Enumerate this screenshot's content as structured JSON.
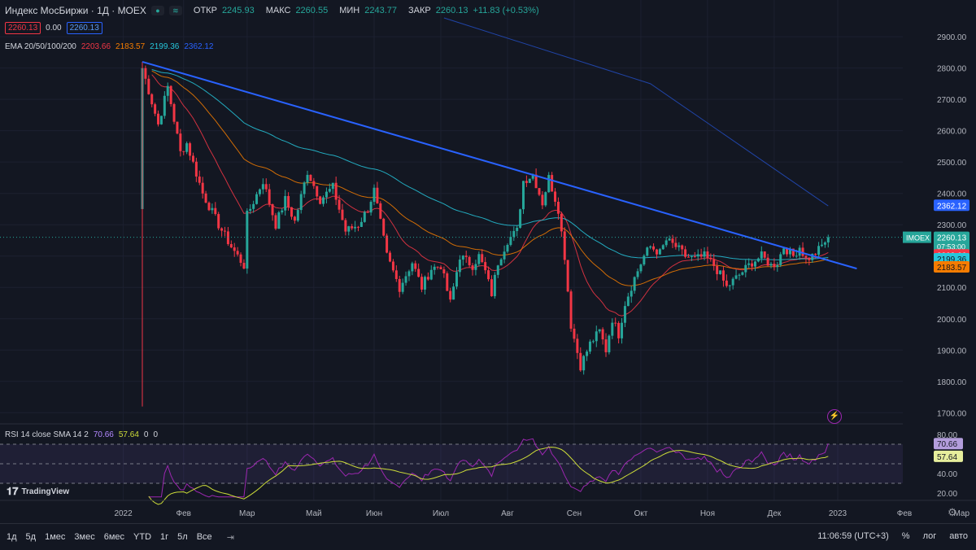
{
  "header": {
    "symbol": "Индекс МосБиржи · 1Д · MOEX",
    "open_lbl": "ОТКР",
    "open": "2245.93",
    "high_lbl": "МАКС",
    "high": "2260.55",
    "low_lbl": "МИН",
    "low": "2243.77",
    "close_lbl": "ЗАКР",
    "close": "2260.13",
    "change": "+11.83 (+0.53%)",
    "icon1": "circle-icon",
    "icon2": "waves-icon"
  },
  "row2": {
    "sell": "2260.13",
    "spread": "0.00",
    "buy": "2260.13"
  },
  "ema": {
    "label": "EMA 20/50/100/200",
    "v20": "2203.66",
    "v50": "2183.57",
    "v100": "2199.36",
    "v200": "2362.12"
  },
  "rsi": {
    "label": "RSI 14 close SMA 14 2",
    "v1": "70.66",
    "v2": "57.64",
    "v3": "0",
    "v4": "0"
  },
  "branding": "TradingView",
  "bottom": {
    "timeframes": [
      "1д",
      "5д",
      "1мес",
      "3мес",
      "6мес",
      "YTD",
      "1г",
      "5л",
      "Все"
    ],
    "clock": "11:06:59 (UTC+3)",
    "pct": "%",
    "log": "лог",
    "auto": "авто"
  },
  "colors": {
    "bg": "#131722",
    "up": "#26a69a",
    "down": "#f23645",
    "ema20": "#f23645",
    "ema50": "#f57c00",
    "ema100": "#26c6da",
    "ema200": "#2962ff",
    "trend": "#2962ff",
    "rsi": "#9c27b0",
    "rsiSma": "#cddc39"
  },
  "chart_data": {
    "type": "candlestick",
    "symbol": "IMOEX",
    "price_tag": {
      "label": "IMOEX",
      "value": "2260.13",
      "time": "07:53:00"
    },
    "ylim": [
      1680,
      2960
    ],
    "yticks": [
      1700,
      1800,
      1900,
      2000,
      2100,
      2200,
      2300,
      2400,
      2500,
      2600,
      2700,
      2800,
      2900
    ],
    "ytick_labels": [
      "1700.00",
      "1800.00",
      "1900.00",
      "2000.00",
      "2100.00",
      "2200.00",
      "2300.00",
      "2400.00",
      "2500.00",
      "2600.00",
      "2700.00",
      "2800.00",
      "2900.00"
    ],
    "xticks": [
      "2022",
      "Фев",
      "Мар",
      "Май",
      "Июн",
      "Июл",
      "Авг",
      "Сен",
      "Окт",
      "Ноя",
      "Дек",
      "2023",
      "Фев",
      "Мар"
    ],
    "price_anchors": [
      [
        0,
        2800
      ],
      [
        5,
        2620
      ],
      [
        8,
        2740
      ],
      [
        12,
        2530
      ],
      [
        14,
        2560
      ],
      [
        19,
        2400
      ],
      [
        24,
        2300
      ],
      [
        28,
        2230
      ],
      [
        32,
        2170
      ],
      [
        33,
        2330
      ],
      [
        38,
        2440
      ],
      [
        42,
        2300
      ],
      [
        45,
        2380
      ],
      [
        48,
        2310
      ],
      [
        52,
        2470
      ],
      [
        56,
        2380
      ],
      [
        60,
        2420
      ],
      [
        64,
        2280
      ],
      [
        68,
        2300
      ],
      [
        71,
        2350
      ],
      [
        73,
        2410
      ],
      [
        77,
        2200
      ],
      [
        81,
        2100
      ],
      [
        85,
        2180
      ],
      [
        88,
        2100
      ],
      [
        91,
        2160
      ],
      [
        94,
        2170
      ],
      [
        97,
        2050
      ],
      [
        100,
        2200
      ],
      [
        104,
        2170
      ],
      [
        106,
        2200
      ],
      [
        108,
        2150
      ],
      [
        110,
        2080
      ],
      [
        112,
        2180
      ],
      [
        115,
        2250
      ],
      [
        118,
        2280
      ],
      [
        120,
        2440
      ],
      [
        123,
        2460
      ],
      [
        126,
        2370
      ],
      [
        128,
        2450
      ],
      [
        131,
        2350
      ],
      [
        133,
        2200
      ],
      [
        135,
        1980
      ],
      [
        138,
        1850
      ],
      [
        141,
        1920
      ],
      [
        144,
        1960
      ],
      [
        146,
        1900
      ],
      [
        148,
        2000
      ],
      [
        150,
        1950
      ],
      [
        152,
        2050
      ],
      [
        155,
        2130
      ],
      [
        158,
        2200
      ],
      [
        160,
        2230
      ],
      [
        163,
        2210
      ],
      [
        165,
        2250
      ],
      [
        168,
        2230
      ],
      [
        171,
        2200
      ],
      [
        174,
        2190
      ],
      [
        177,
        2200
      ],
      [
        180,
        2170
      ],
      [
        182,
        2140
      ],
      [
        184,
        2100
      ],
      [
        186,
        2120
      ],
      [
        189,
        2150
      ],
      [
        192,
        2180
      ],
      [
        195,
        2200
      ],
      [
        198,
        2170
      ],
      [
        200,
        2180
      ],
      [
        202,
        2230
      ],
      [
        205,
        2200
      ],
      [
        207,
        2230
      ],
      [
        209,
        2190
      ],
      [
        211,
        2200
      ],
      [
        213,
        2220
      ],
      [
        216,
        2260
      ]
    ],
    "ema200_points": [
      [
        95,
        2960
      ],
      [
        160,
        2750
      ],
      [
        216,
        2360
      ]
    ],
    "trendline": {
      "from": {
        "bar": 0,
        "value": 2820
      },
      "to": {
        "bar": 225,
        "value": 2160
      }
    },
    "rsi": {
      "ylim": [
        15,
        85
      ],
      "ticks": [
        80,
        60,
        40,
        20
      ],
      "tick_labels": [
        "80.00",
        "60.00",
        "40.00",
        "20.00"
      ],
      "overbought": 70,
      "oversold": 30,
      "last": 70.66,
      "sma_last": 57.64
    }
  }
}
